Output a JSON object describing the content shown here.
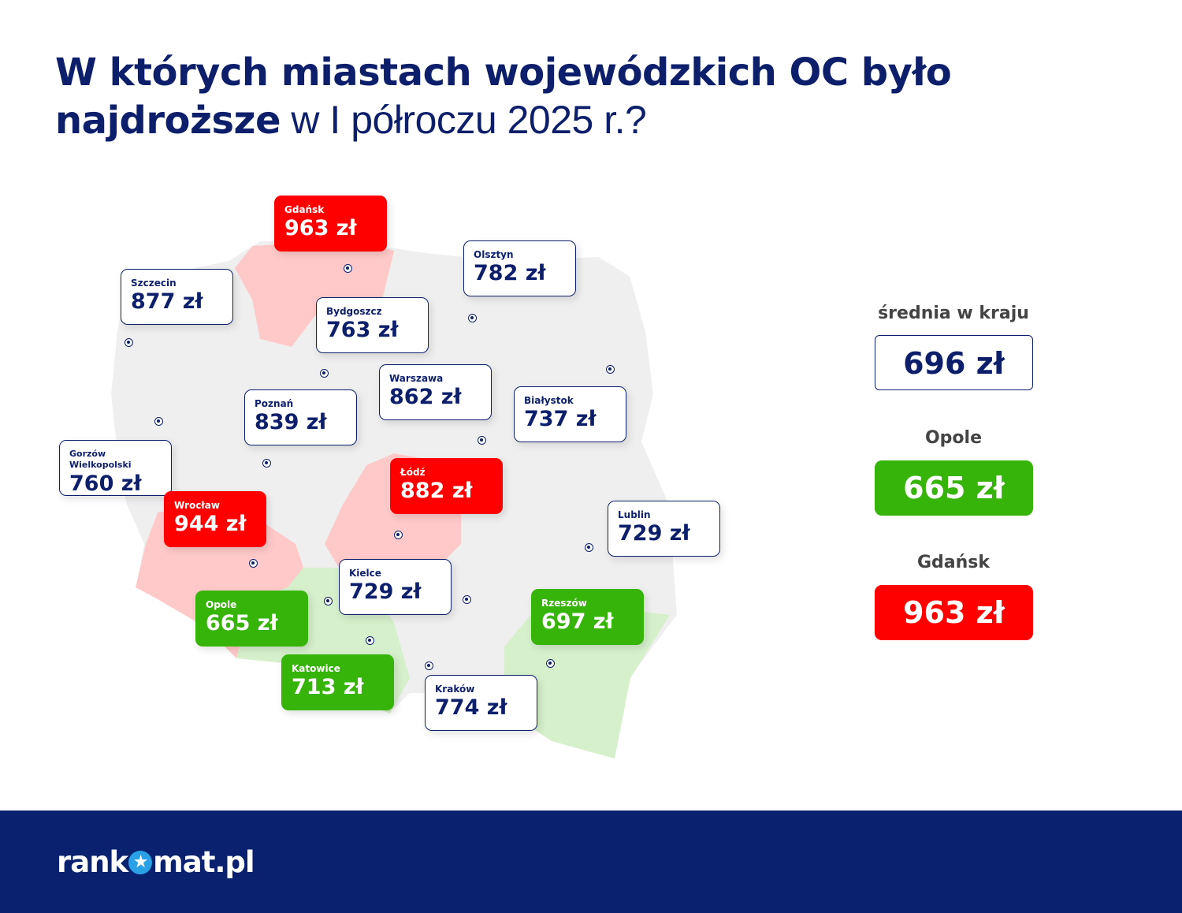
{
  "title": {
    "bold_part1": "W których miastach wojewódzkich OC było",
    "bold_part2": "najdroższe",
    "light_part": " w I półroczu 2025 r.?"
  },
  "cities": [
    {
      "city": "Gdańsk",
      "price": "963 zł",
      "status": "highest"
    },
    {
      "city": "Szczecin",
      "price": "877 zł",
      "status": "normal"
    },
    {
      "city": "Olsztyn",
      "price": "782 zł",
      "status": "normal"
    },
    {
      "city": "Bydgoszcz",
      "price": "763 zł",
      "status": "normal"
    },
    {
      "city": "Warszawa",
      "price": "862 zł",
      "status": "normal"
    },
    {
      "city": "Białystok",
      "price": "737 zł",
      "status": "normal"
    },
    {
      "city": "Poznań",
      "price": "839 zł",
      "status": "normal"
    },
    {
      "city": "Gorzów Wielkopolski",
      "price": "760 zł",
      "status": "normal"
    },
    {
      "city": "Wrocław",
      "price": "944 zł",
      "status": "highest"
    },
    {
      "city": "Łódź",
      "price": "882 zł",
      "status": "highest"
    },
    {
      "city": "Lublin",
      "price": "729 zł",
      "status": "normal"
    },
    {
      "city": "Kielce",
      "price": "729 zł",
      "status": "normal"
    },
    {
      "city": "Opole",
      "price": "665 zł",
      "status": "lowest"
    },
    {
      "city": "Rzeszów",
      "price": "697 zł",
      "status": "lowest"
    },
    {
      "city": "Katowice",
      "price": "713 zł",
      "status": "lowest"
    },
    {
      "city": "Kraków",
      "price": "774 zł",
      "status": "normal"
    }
  ],
  "summary": {
    "average_label": "średnia w kraju",
    "average_value": "696 zł",
    "lowest_label": "Opole",
    "lowest_value": "665 zł",
    "highest_label": "Gdańsk",
    "highest_value": "963 zł"
  },
  "colors": {
    "navy": "#0d1f6b",
    "red": "#ff0000",
    "green": "#37b40a",
    "footer": "#0a2170"
  },
  "footer": {
    "logo_left": "rank",
    "logo_right": "mat.pl"
  }
}
